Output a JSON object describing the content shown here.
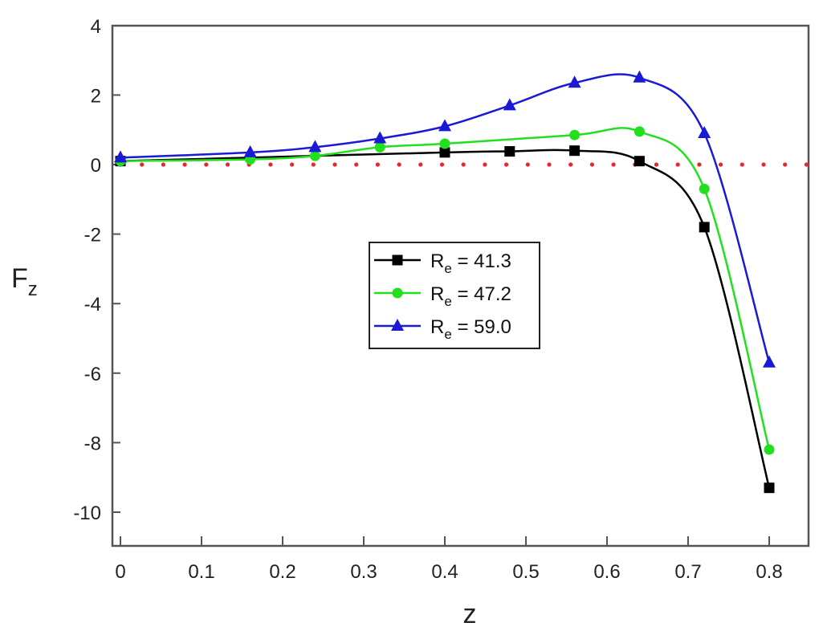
{
  "chart_data": {
    "type": "line",
    "title": "",
    "xlabel": "z",
    "ylabel": "F",
    "ylabel_sub": "z",
    "xlim": [
      -0.005,
      0.85
    ],
    "ylim": [
      -11,
      4
    ],
    "x_ticks": [
      0,
      0.1,
      0.2,
      0.3,
      0.4,
      0.5,
      0.6,
      0.7,
      0.8
    ],
    "x_tick_labels": [
      "0",
      "0.1",
      "0.2",
      "0.3",
      "0.4",
      "0.5",
      "0.6",
      "0.7",
      "0.8"
    ],
    "y_ticks": [
      4,
      2,
      0,
      -2,
      -4,
      -6,
      -8,
      -10
    ],
    "y_tick_labels": [
      "4",
      "2",
      "0",
      "-2",
      "-4",
      "-6",
      "-8",
      "-10"
    ],
    "grid": false,
    "legend_position": "center-left (inside plot)",
    "reference_line": {
      "y": 0,
      "style": "dotted",
      "color": "#e8262b"
    },
    "series": [
      {
        "name": "Re = 41.3",
        "label_main": "R",
        "label_sub": "e",
        "label_rest": " = 41.3",
        "color": "#000000",
        "marker": "square",
        "x": [
          0,
          0.4,
          0.48,
          0.56,
          0.64,
          0.72,
          0.8
        ],
        "values": [
          0.1,
          0.35,
          0.38,
          0.4,
          0.1,
          -1.8,
          -9.3
        ]
      },
      {
        "name": "Re = 47.2",
        "label_main": "R",
        "label_sub": "e",
        "label_rest": " = 47.2",
        "color": "#22e01e",
        "marker": "circle",
        "x": [
          0,
          0.16,
          0.24,
          0.32,
          0.4,
          0.56,
          0.64,
          0.72,
          0.8
        ],
        "values": [
          0.1,
          0.15,
          0.25,
          0.5,
          0.6,
          0.85,
          0.95,
          -0.7,
          -8.2
        ]
      },
      {
        "name": "Re = 59.0",
        "label_main": "R",
        "label_sub": "e",
        "label_rest": " = 59.0",
        "color": "#1a1ad6",
        "marker": "triangle",
        "x": [
          0,
          0.16,
          0.24,
          0.32,
          0.4,
          0.48,
          0.56,
          0.64,
          0.72,
          0.8
        ],
        "values": [
          0.2,
          0.35,
          0.5,
          0.75,
          1.1,
          1.7,
          2.35,
          2.5,
          0.9,
          -5.7
        ]
      }
    ]
  }
}
